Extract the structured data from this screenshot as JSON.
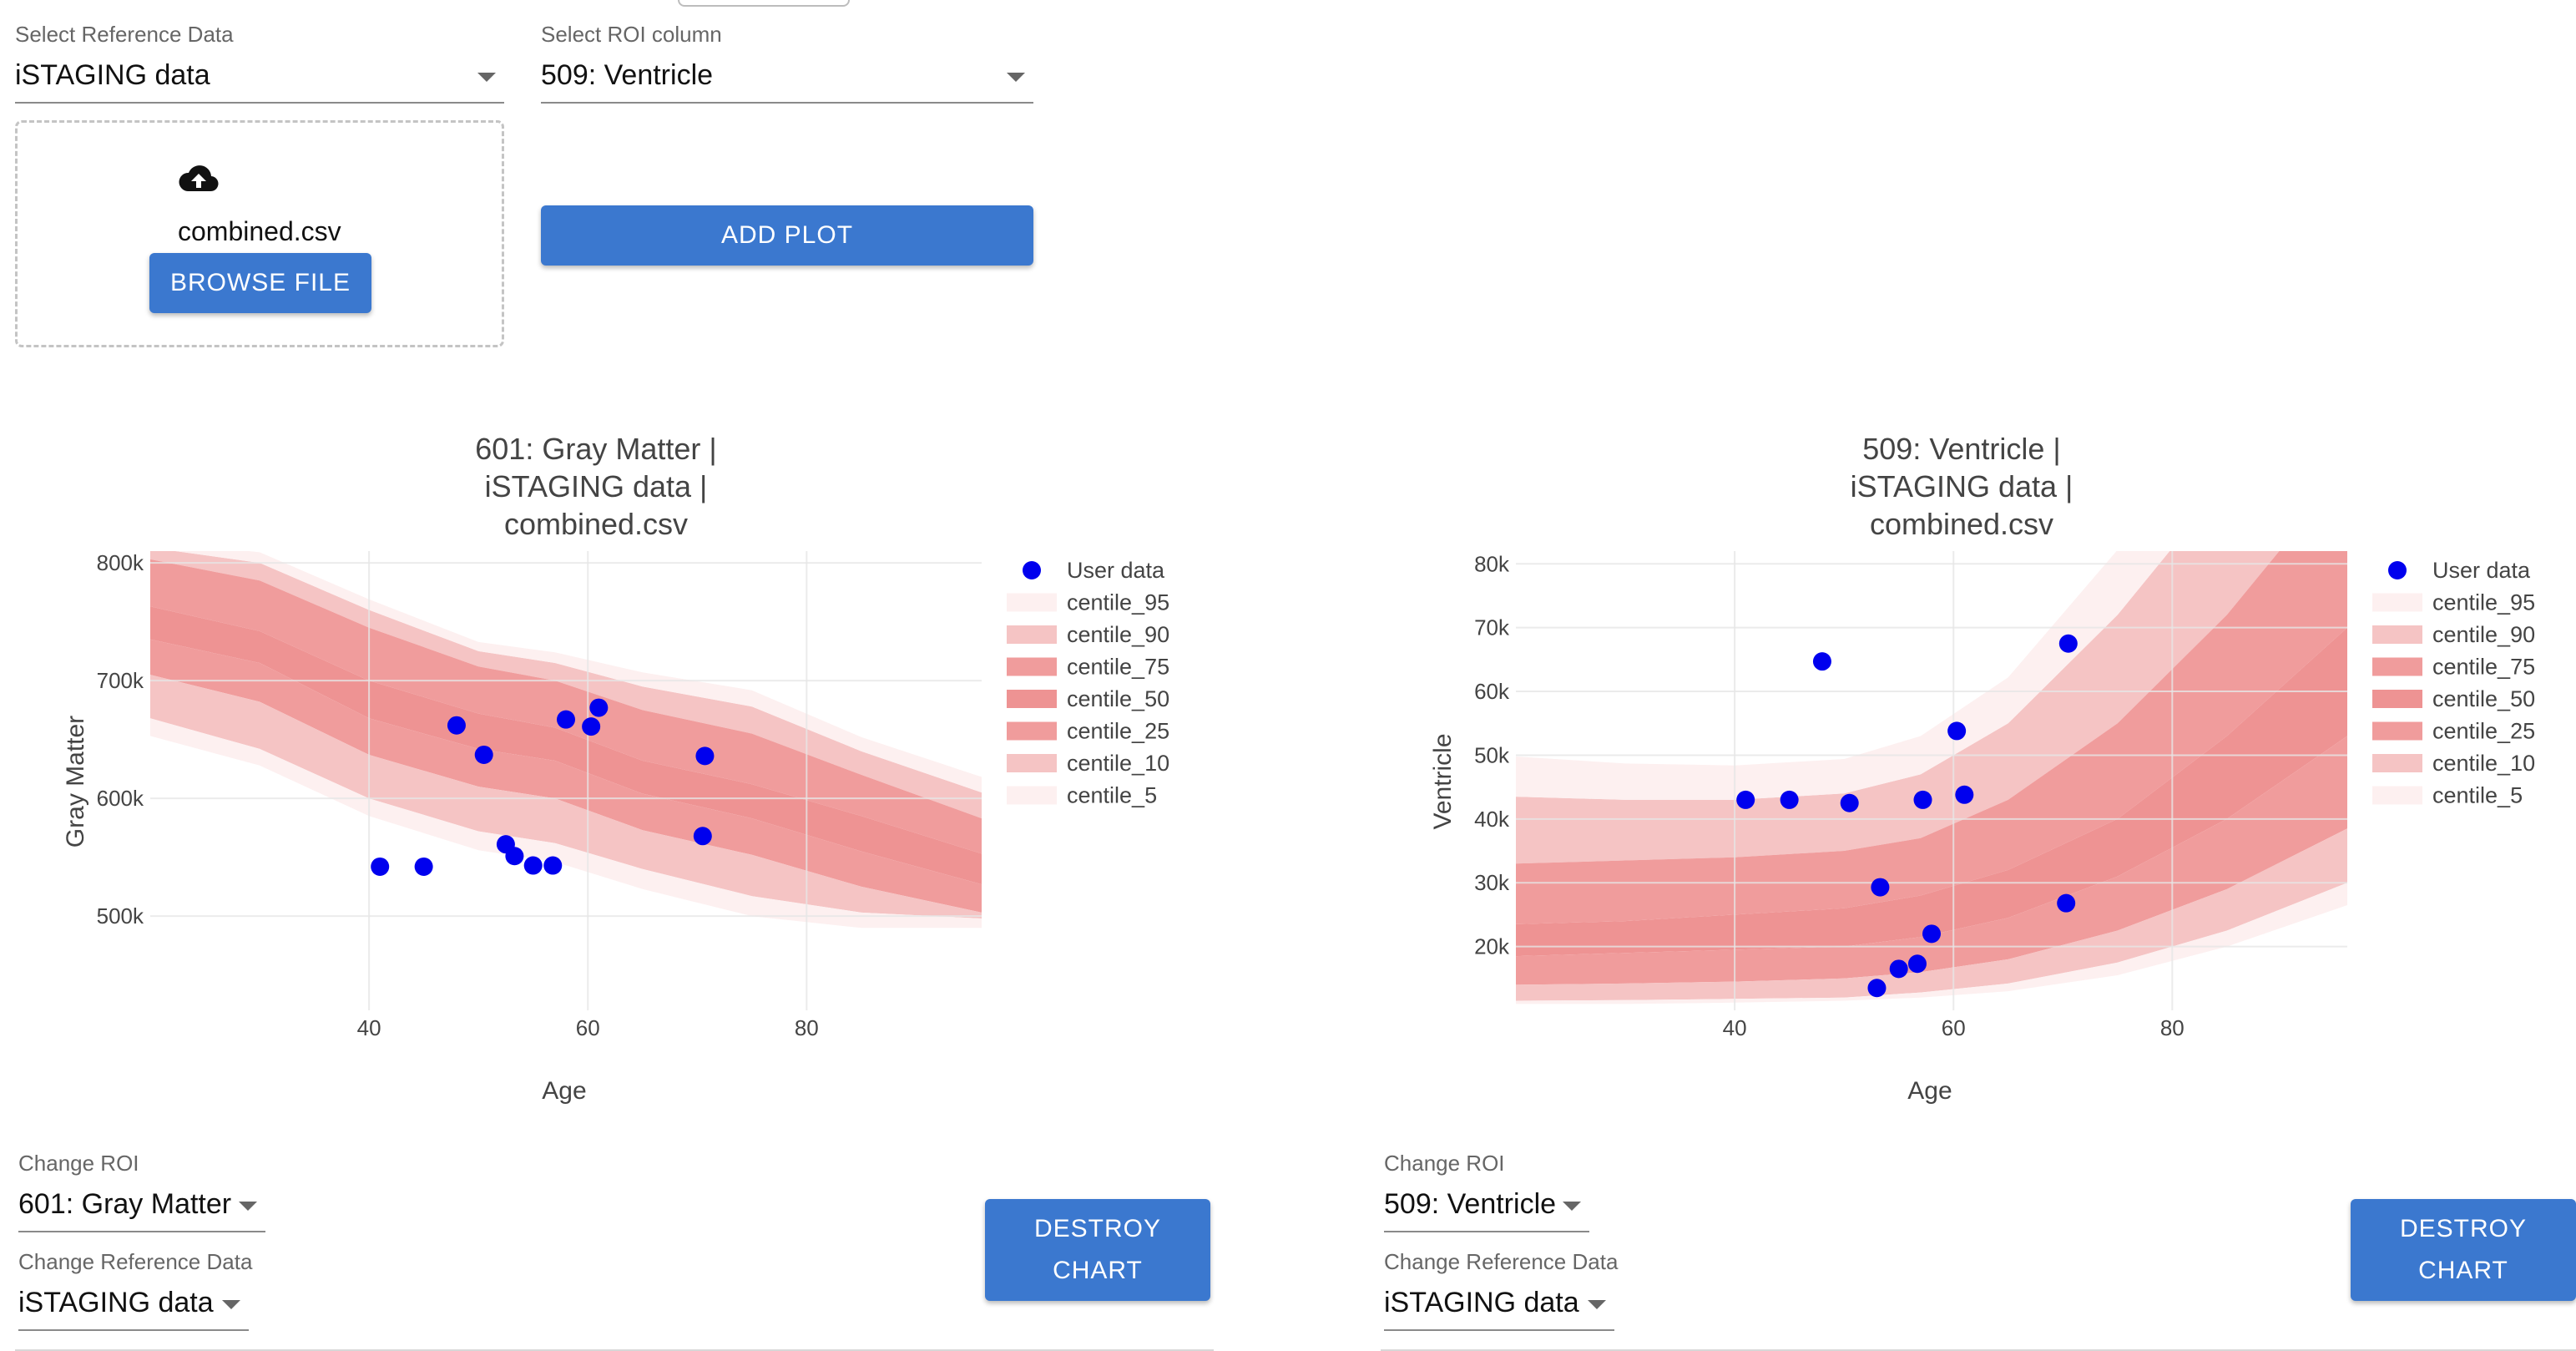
{
  "top": {
    "ref_label": "Select Reference Data",
    "ref_value": "iSTAGING data",
    "roi_label": "Select ROI column",
    "roi_value": "509: Ventricle",
    "file_name": "combined.csv",
    "browse_label": "BROWSE FILE",
    "add_plot_label": "ADD PLOT"
  },
  "panels": [
    {
      "title_lines": [
        "601: Gray Matter |",
        "iSTAGING data |",
        "combined.csv"
      ],
      "change_roi_label": "Change ROI",
      "change_roi_value": "601: Gray Matter",
      "change_ref_label": "Change Reference Data",
      "change_ref_value": "iSTAGING data",
      "destroy_line1": "DESTROY",
      "destroy_line2": "CHART"
    },
    {
      "title_lines": [
        "509: Ventricle |",
        "iSTAGING data |",
        "combined.csv"
      ],
      "change_roi_label": "Change ROI",
      "change_roi_value": "509: Ventricle",
      "change_ref_label": "Change Reference Data",
      "change_ref_value": "iSTAGING data",
      "destroy_line1": "DESTROY",
      "destroy_line2": "CHART"
    }
  ],
  "chart_data": [
    {
      "type": "scatter",
      "title": "601: Gray Matter | iSTAGING data | combined.csv",
      "xlabel": "Age",
      "ylabel": "Gray Matter",
      "xlim": [
        20,
        96
      ],
      "ylim": [
        420000,
        810000
      ],
      "x_ticks": [
        40,
        60,
        80
      ],
      "y_ticks": [
        500000,
        600000,
        700000,
        800000
      ],
      "y_tick_labels": [
        "500k",
        "600k",
        "700k",
        "800k"
      ],
      "grid": true,
      "legend_position": "right",
      "legend": [
        "User data",
        "centile_95",
        "centile_90",
        "centile_75",
        "centile_50",
        "centile_25",
        "centile_10",
        "centile_5"
      ],
      "user_data": {
        "name": "User data",
        "color": "#0000ee",
        "x": [
          41,
          45,
          48,
          50.5,
          52.5,
          53.3,
          55,
          56.8,
          58,
          60.3,
          61,
          70.5,
          70.7
        ],
        "y": [
          542000,
          542000,
          662000,
          637000,
          561000,
          551000,
          543000,
          543000,
          667000,
          661000,
          677000,
          568000,
          636000
        ]
      },
      "centile_x": [
        20,
        30,
        40,
        50,
        57,
        65,
        75,
        85,
        96
      ],
      "centiles": [
        {
          "name": "centile_95",
          "color": "#fdf0f0",
          "values": [
            813000,
            800000,
            760000,
            725000,
            715000,
            695000,
            678000,
            640000,
            605000
          ]
        },
        {
          "name": "centile_90",
          "color": "#f5c4c4",
          "values": [
            803000,
            785000,
            745000,
            712000,
            700000,
            675000,
            655000,
            620000,
            583000
          ]
        },
        {
          "name": "centile_75",
          "color": "#f09c9c",
          "values": [
            763000,
            742000,
            700000,
            672000,
            660000,
            632000,
            612000,
            585000,
            553000
          ]
        },
        {
          "name": "centile_50",
          "color": "#ee9393",
          "values": [
            735000,
            715000,
            668000,
            642000,
            632000,
            604000,
            583000,
            555000,
            527000
          ]
        },
        {
          "name": "centile_25",
          "color": "#f09c9c",
          "values": [
            705000,
            682000,
            637000,
            610000,
            600000,
            573000,
            552000,
            525000,
            503000
          ]
        },
        {
          "name": "centile_10",
          "color": "#f5c4c4",
          "values": [
            668000,
            642000,
            600000,
            572000,
            562000,
            540000,
            517000,
            503000,
            498000
          ]
        },
        {
          "name": "centile_5",
          "color": "#fdf0f0",
          "values": [
            653000,
            628000,
            585000,
            556000,
            546000,
            523000,
            500000,
            490000,
            490000
          ]
        }
      ]
    },
    {
      "type": "scatter",
      "title": "509: Ventricle | iSTAGING data | combined.csv",
      "xlabel": "Age",
      "ylabel": "Ventricle",
      "xlim": [
        20,
        96
      ],
      "ylim": [
        10000,
        82000
      ],
      "x_ticks": [
        40,
        60,
        80
      ],
      "y_ticks": [
        20000,
        30000,
        40000,
        50000,
        60000,
        70000,
        80000
      ],
      "y_tick_labels": [
        "20k",
        "30k",
        "40k",
        "50k",
        "60k",
        "70k",
        "80k"
      ],
      "grid": true,
      "legend_position": "right",
      "legend": [
        "User data",
        "centile_95",
        "centile_90",
        "centile_75",
        "centile_50",
        "centile_25",
        "centile_10",
        "centile_5"
      ],
      "user_data": {
        "name": "User data",
        "color": "#0000ee",
        "x": [
          41,
          45,
          48,
          50.5,
          53,
          53.3,
          55,
          56.7,
          57.2,
          58,
          60.3,
          61,
          70.3,
          70.5
        ],
        "y": [
          43000,
          43000,
          64700,
          42500,
          13500,
          29300,
          16500,
          17300,
          43000,
          22000,
          53800,
          43800,
          26800,
          67500
        ]
      },
      "centile_x": [
        20,
        30,
        40,
        50,
        57,
        65,
        75,
        85,
        96
      ],
      "centiles": [
        {
          "name": "centile_95",
          "color": "#fdf0f0",
          "values": [
            43500,
            43000,
            43000,
            44000,
            47000,
            55000,
            72000,
            93000,
            118000
          ]
        },
        {
          "name": "centile_90",
          "color": "#f5c4c4",
          "values": [
            33000,
            33500,
            34000,
            35000,
            37000,
            43000,
            55000,
            72000,
            95000
          ]
        },
        {
          "name": "centile_75",
          "color": "#f09c9c",
          "values": [
            23500,
            24000,
            25000,
            26000,
            28000,
            32000,
            40000,
            53000,
            70000
          ]
        },
        {
          "name": "centile_50",
          "color": "#ee9393",
          "values": [
            18500,
            19000,
            19500,
            20000,
            21500,
            24500,
            31000,
            40000,
            53000
          ]
        },
        {
          "name": "centile_25",
          "color": "#f09c9c",
          "values": [
            14000,
            14200,
            14500,
            15000,
            16000,
            18000,
            22500,
            29000,
            38500
          ]
        },
        {
          "name": "centile_10",
          "color": "#f5c4c4",
          "values": [
            11500,
            11600,
            11800,
            12000,
            12800,
            14200,
            17500,
            22500,
            30000
          ]
        },
        {
          "name": "centile_5",
          "color": "#fdf0f0",
          "values": [
            11000,
            11000,
            11200,
            11500,
            12000,
            13000,
            15500,
            20000,
            26500
          ]
        }
      ]
    }
  ]
}
